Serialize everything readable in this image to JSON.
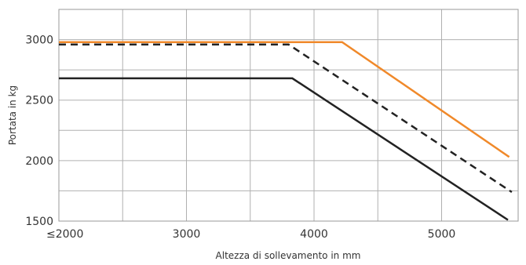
{
  "chart_data": {
    "type": "line",
    "xlabel": "Altezza di sollevamento in mm",
    "ylabel": "Portata in kg",
    "xlim": [
      2000,
      5600
    ],
    "ylim": [
      1500,
      3250
    ],
    "x_ticks": [
      {
        "value": 2000,
        "label": "≤2000"
      },
      {
        "value": 3000,
        "label": "3000"
      },
      {
        "value": 4000,
        "label": "4000"
      },
      {
        "value": 5000,
        "label": "5000"
      }
    ],
    "x_grid": [
      2000,
      2500,
      3000,
      3500,
      4000,
      4500,
      5000
    ],
    "y_ticks": [
      {
        "value": 1500,
        "label": "1500"
      },
      {
        "value": 2000,
        "label": "2000"
      },
      {
        "value": 2500,
        "label": "2500"
      },
      {
        "value": 3000,
        "label": "3000"
      }
    ],
    "y_grid": [
      1500,
      1750,
      2000,
      2250,
      2500,
      2750,
      3000,
      3250
    ],
    "grid": true,
    "legend": false,
    "series": [
      {
        "color": "#f0892a",
        "dash": "solid",
        "x": [
          2000,
          4220,
          5530
        ],
        "y": [
          2980,
          2980,
          2030
        ]
      },
      {
        "color": "#222222",
        "dash": "dashed",
        "x": [
          2000,
          3800,
          5550
        ],
        "y": [
          2960,
          2960,
          1740
        ]
      },
      {
        "color": "#222222",
        "dash": "solid",
        "x": [
          2000,
          3830,
          5520
        ],
        "y": [
          2680,
          2680,
          1510
        ]
      }
    ]
  }
}
